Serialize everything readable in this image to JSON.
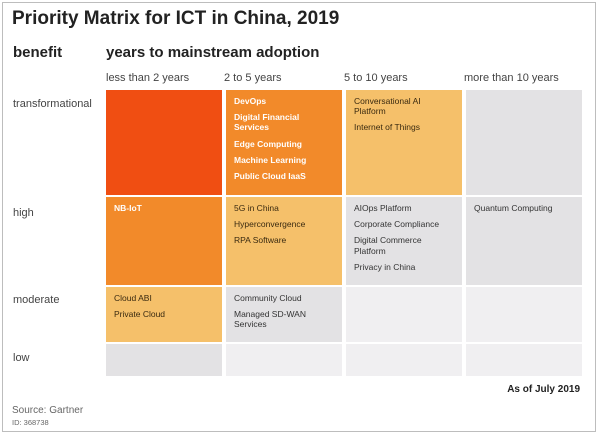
{
  "title": "Priority Matrix for ICT in China, 2019",
  "row_axis_label": "benefit",
  "col_axis_label": "years to mainstream adoption",
  "columns": [
    "less than 2 years",
    "2 to 5 years",
    "5 to 10 years",
    "more than 10 years"
  ],
  "rows": [
    "transformational",
    "high",
    "moderate",
    "low"
  ],
  "cells": {
    "transformational": {
      "less_than_2": [],
      "two_to_5": [
        "DevOps",
        "Digital Financial Services",
        "Edge Computing",
        "Machine Learning",
        "Public Cloud IaaS"
      ],
      "five_to_10": [
        "Conversational AI Platform",
        "Internet of Things"
      ],
      "more_than_10": []
    },
    "high": {
      "less_than_2": [
        "NB-IoT"
      ],
      "two_to_5": [
        "5G in China",
        "Hyperconvergence",
        "RPA Software"
      ],
      "five_to_10": [
        "AIOps Platform",
        "Corporate Compliance",
        "Digital Commerce Platform",
        "Privacy in China"
      ],
      "more_than_10": [
        "Quantum Computing"
      ]
    },
    "moderate": {
      "less_than_2": [
        "Cloud ABI",
        "Private Cloud"
      ],
      "two_to_5": [
        "Community Cloud",
        "Managed SD-WAN Services"
      ],
      "five_to_10": [],
      "more_than_10": []
    },
    "low": {
      "less_than_2": [],
      "two_to_5": [],
      "five_to_10": [],
      "more_than_10": []
    }
  },
  "as_of": "As of July 2019",
  "source": "Source: Gartner",
  "id": "ID: 368738",
  "colors": {
    "dark_orange": "#f04e12",
    "orange": "#f28a2a",
    "light_orange": "#f5c06a",
    "gray": "#e3e2e4",
    "pale_gray": "#f0eff1"
  }
}
